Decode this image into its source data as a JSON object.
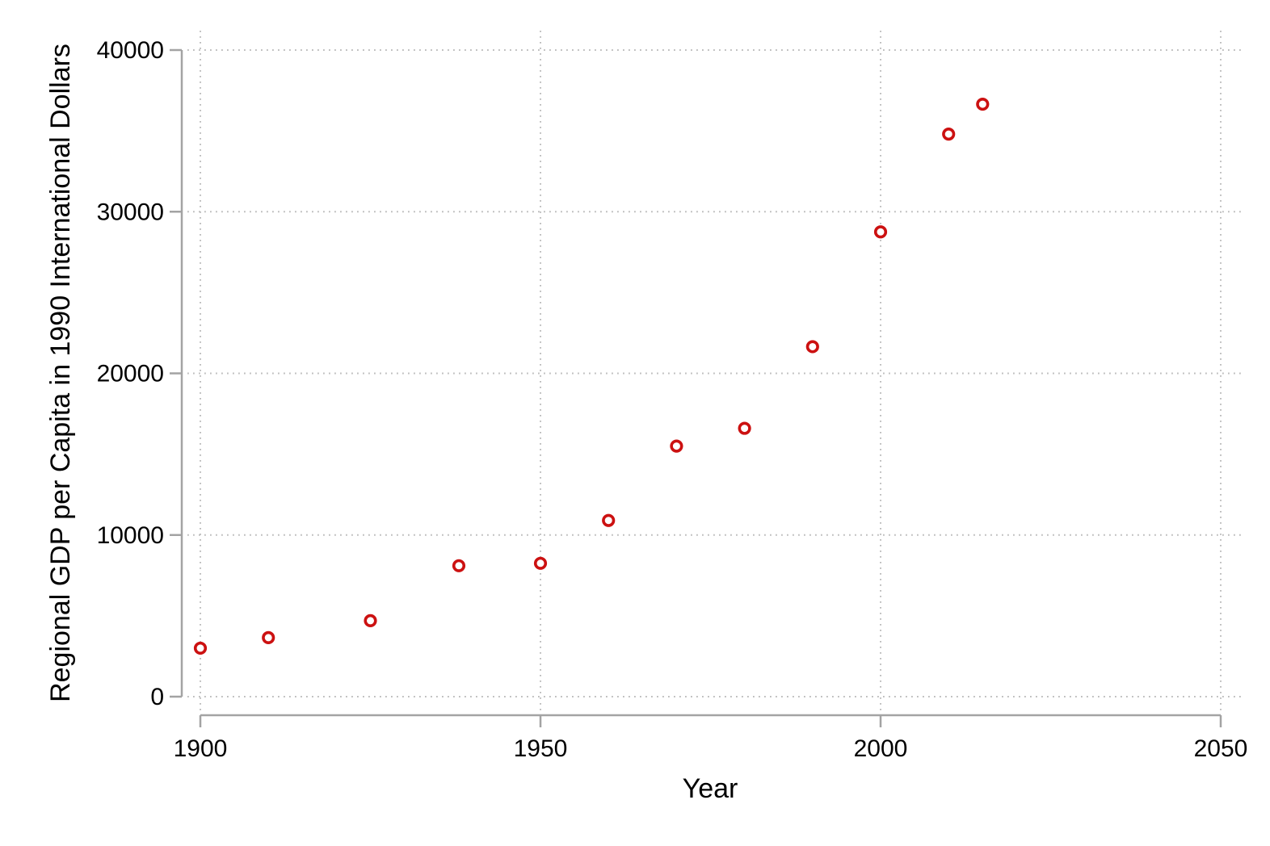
{
  "chart_data": {
    "type": "scatter",
    "title": "",
    "xlabel": "Year",
    "ylabel": "Regional GDP per Capita in 1990 International Dollars",
    "x": [
      1900,
      1910,
      1925,
      1938,
      1950,
      1960,
      1970,
      1980,
      1990,
      2000,
      2010,
      2015
    ],
    "y": [
      3000,
      3650,
      4700,
      8100,
      8250,
      10900,
      15500,
      16600,
      21650,
      28750,
      34800,
      36650
    ],
    "series_name": "Regional GDP per Capita",
    "xlim": [
      1900,
      2050
    ],
    "ylim": [
      0,
      40000
    ],
    "xticks": {
      "values": [
        1900,
        1950,
        2000,
        2050
      ],
      "labels": [
        "1900",
        "1950",
        "2000",
        "2050"
      ]
    },
    "yticks": {
      "values": [
        0,
        10000,
        20000,
        30000,
        40000
      ],
      "labels": [
        "0",
        "10000",
        "20000",
        "30000",
        "40000"
      ]
    },
    "grid": "dotted",
    "legend": "none",
    "marker_shape": "hollow-circle"
  },
  "style": {
    "background_color": "#ffffff",
    "marker_color": "#cc1111",
    "marker_fill": "#ffffff",
    "axis_color": "#a3a3a3",
    "grid_color": "#bdbdbd",
    "text_color": "#000000"
  }
}
